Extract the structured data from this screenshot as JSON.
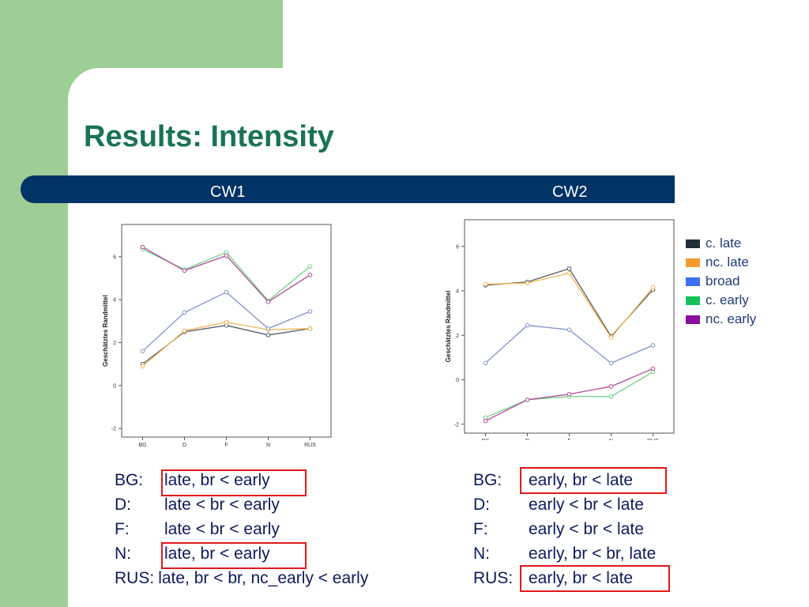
{
  "slide": {
    "title": "Results: Intensity"
  },
  "header": {
    "cw1_label": "CW1",
    "cw2_label": "CW2"
  },
  "legend": [
    {
      "label": "c. late",
      "color": "#222e36"
    },
    {
      "label": "nc. late",
      "color": "#f79a2e"
    },
    {
      "label": "broad",
      "color": "#3f6ef0"
    },
    {
      "label": "c. early",
      "color": "#14c25c"
    },
    {
      "label": "nc. early",
      "color": "#8a0f9c"
    }
  ],
  "chart_data": [
    {
      "type": "line",
      "ylabel": "Geschätztes Randmittel",
      "categories": [
        "BG",
        "D",
        "F",
        "N",
        "RUS"
      ],
      "ylim": [
        -2.4,
        7.5
      ],
      "yticks": [
        -2,
        0,
        2,
        4,
        6
      ],
      "series": [
        {
          "name": "c. late",
          "color": "#555c66",
          "values": [
            1.0,
            2.5,
            2.8,
            2.35,
            2.65
          ]
        },
        {
          "name": "nc. late",
          "color": "#f2b450",
          "values": [
            0.9,
            2.55,
            2.95,
            2.6,
            2.65
          ]
        },
        {
          "name": "broad",
          "color": "#7f93c8",
          "values": [
            1.6,
            3.4,
            4.35,
            2.65,
            3.45
          ]
        },
        {
          "name": "c. early",
          "color": "#6ed486",
          "values": [
            6.35,
            5.4,
            6.2,
            3.95,
            5.55
          ]
        },
        {
          "name": "nc. early",
          "color": "#b0499b",
          "values": [
            6.45,
            5.35,
            6.05,
            3.9,
            5.15
          ]
        }
      ]
    },
    {
      "type": "line",
      "ylabel": "Geschätztes Randmittel",
      "categories": [
        "BG",
        "D",
        "F",
        "N",
        "RUS"
      ],
      "ylim": [
        -2.4,
        7.2
      ],
      "yticks": [
        -2,
        0,
        2,
        4,
        6
      ],
      "series": [
        {
          "name": "c. late",
          "color": "#555c66",
          "values": [
            4.25,
            4.4,
            5.0,
            1.95,
            4.05
          ]
        },
        {
          "name": "nc. late",
          "color": "#f2b450",
          "values": [
            4.3,
            4.35,
            4.8,
            1.9,
            4.15
          ]
        },
        {
          "name": "broad",
          "color": "#7f93c8",
          "values": [
            0.75,
            2.45,
            2.25,
            0.75,
            1.55
          ]
        },
        {
          "name": "c. early",
          "color": "#6ed486",
          "values": [
            -1.7,
            -0.9,
            -0.75,
            -0.75,
            0.35
          ]
        },
        {
          "name": "nc. early",
          "color": "#b0499b",
          "values": [
            -1.85,
            -0.9,
            -0.65,
            -0.3,
            0.5
          ]
        }
      ]
    }
  ],
  "cw1_results": [
    {
      "country": "BG:",
      "text": "late, br < early"
    },
    {
      "country": "D:",
      "text": "late < br < early"
    },
    {
      "country": "F:",
      "text": "late < br < early"
    },
    {
      "country": "N:",
      "text": "late, br < early"
    },
    {
      "country": "RUS:",
      "text": "late, br < br, nc_early < early"
    }
  ],
  "cw2_results": [
    {
      "country": "BG:",
      "text": "early, br < late"
    },
    {
      "country": "D:",
      "text": "early < br < late"
    },
    {
      "country": "F:",
      "text": "early < br < late"
    },
    {
      "country": "N:",
      "text": "early, br < br, late"
    },
    {
      "country": "RUS:",
      "text": "early, br < late"
    }
  ]
}
